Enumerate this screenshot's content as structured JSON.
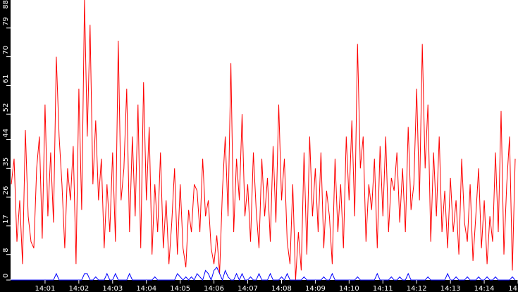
{
  "chart_data": {
    "type": "line",
    "title": "",
    "xlabel": "",
    "ylabel": "",
    "ylim": [
      0,
      88
    ],
    "y_ticks": [
      "0",
      "8",
      "17",
      "26",
      "35",
      "44",
      "52",
      "61",
      "70",
      "79",
      "88"
    ],
    "x_ticks": [
      "14:01",
      "14:02",
      "14:03",
      "14:04",
      "14:05",
      "14:06",
      "14:07",
      "14:08",
      "14:09",
      "14:10",
      "14:11",
      "14:12",
      "14:13",
      "14:14",
      "14"
    ],
    "x_start": "14:00:00",
    "x_interval_seconds": 5,
    "grid": false,
    "background": "#ffffff",
    "axis_color": "#000000",
    "series": [
      {
        "color": "#ff0000",
        "values": [
          30,
          38,
          12,
          25,
          5,
          47,
          20,
          12,
          10,
          35,
          45,
          13,
          55,
          20,
          40,
          18,
          70,
          45,
          30,
          10,
          35,
          25,
          42,
          5,
          60,
          22,
          88,
          45,
          80,
          30,
          50,
          25,
          38,
          10,
          30,
          15,
          40,
          12,
          75,
          25,
          35,
          60,
          15,
          45,
          20,
          55,
          10,
          62,
          25,
          48,
          8,
          30,
          15,
          40,
          10,
          25,
          5,
          18,
          35,
          8,
          30,
          10,
          4,
          22,
          15,
          30,
          28,
          15,
          38,
          20,
          25,
          10,
          5,
          14,
          2,
          28,
          45,
          20,
          68,
          15,
          38,
          25,
          52,
          20,
          30,
          12,
          40,
          22,
          10,
          38,
          20,
          32,
          12,
          42,
          18,
          55,
          25,
          38,
          12,
          5,
          30,
          0,
          15,
          3,
          40,
          8,
          45,
          20,
          35,
          15,
          40,
          10,
          28,
          20,
          5,
          38,
          15,
          30,
          10,
          45,
          25,
          50,
          20,
          74,
          35,
          45,
          12,
          30,
          22,
          38,
          10,
          42,
          20,
          45,
          15,
          32,
          28,
          40,
          18,
          35,
          15,
          48,
          22,
          30,
          60,
          25,
          74,
          35,
          55,
          12,
          40,
          20,
          45,
          15,
          28,
          10,
          32,
          15,
          25,
          8,
          38,
          18,
          12,
          30,
          6,
          20,
          35,
          10,
          25,
          5,
          20,
          12,
          40,
          15,
          53,
          8,
          30,
          45,
          3,
          38
        ]
      },
      {
        "color": "#0000ff",
        "values": [
          0,
          0,
          0,
          0,
          0,
          0,
          0,
          0,
          0,
          0,
          0,
          0,
          0,
          0,
          0,
          0,
          2,
          0,
          0,
          0,
          0,
          0,
          0,
          0,
          0,
          0,
          2,
          2,
          0,
          0,
          1,
          0,
          0,
          0,
          2,
          0,
          0,
          2,
          0,
          0,
          0,
          0,
          2,
          0,
          0,
          0,
          0,
          0,
          0,
          0,
          0,
          1,
          0,
          0,
          0,
          0,
          0,
          0,
          0,
          2,
          1,
          0,
          1,
          0,
          1,
          0,
          2,
          1,
          0,
          3,
          2,
          0,
          3,
          4,
          2,
          0,
          3,
          1,
          0,
          0,
          2,
          0,
          2,
          0,
          0,
          1,
          0,
          0,
          2,
          0,
          0,
          0,
          2,
          0,
          0,
          0,
          1,
          0,
          2,
          0,
          0,
          0,
          0,
          0,
          1,
          0,
          0,
          0,
          0,
          0,
          0,
          1,
          0,
          0,
          2,
          0,
          0,
          0,
          0,
          0,
          0,
          0,
          0,
          1,
          0,
          0,
          0,
          0,
          0,
          0,
          2,
          0,
          0,
          0,
          0,
          1,
          0,
          0,
          1,
          0,
          0,
          2,
          0,
          0,
          0,
          0,
          0,
          0,
          1,
          0,
          0,
          0,
          0,
          0,
          0,
          2,
          0,
          0,
          1,
          0,
          0,
          0,
          1,
          0,
          0,
          0,
          1,
          0,
          0,
          1,
          0,
          0,
          1,
          0,
          0,
          0,
          0,
          0,
          1,
          0
        ]
      }
    ]
  }
}
